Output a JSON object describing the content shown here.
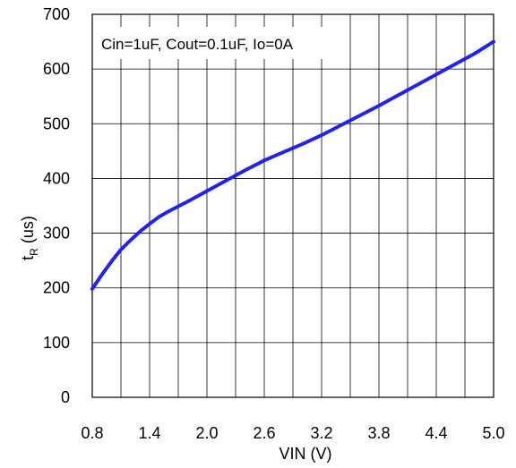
{
  "chart_data": {
    "type": "line",
    "annotation": "Cin=1uF, Cout=0.1uF, Io=0A",
    "xlabel": "VIN (V)",
    "ylabel_main": "t",
    "ylabel_sub": "R",
    "ylabel_unit": " (us)",
    "xlim": [
      0.8,
      5.0
    ],
    "ylim": [
      0,
      700
    ],
    "x_ticks": [
      0.8,
      1.4,
      2.0,
      2.6,
      3.2,
      3.8,
      4.4,
      5.0
    ],
    "x_tick_labels": [
      "0.8",
      "1.4",
      "2.0",
      "2.6",
      "3.2",
      "3.8",
      "4.4",
      "5.0"
    ],
    "y_ticks": [
      0,
      100,
      200,
      300,
      400,
      500,
      600,
      700
    ],
    "y_tick_labels": [
      "0",
      "100",
      "200",
      "300",
      "400",
      "500",
      "600",
      "700"
    ],
    "x_grid_step": 0.3,
    "y_grid_step": 100,
    "grid": true,
    "series": [
      {
        "color": "#2323e8",
        "x": [
          0.8,
          0.9,
          1.0,
          1.1,
          1.2,
          1.3,
          1.4,
          1.5,
          1.6,
          1.8,
          2.0,
          2.2,
          2.4,
          2.6,
          2.8,
          3.0,
          3.2,
          3.4,
          3.6,
          3.8,
          4.0,
          4.2,
          4.4,
          4.6,
          4.8,
          5.0
        ],
        "y": [
          198,
          224,
          248,
          270,
          287,
          303,
          317,
          330,
          340,
          358,
          377,
          396,
          415,
          433,
          448,
          463,
          479,
          497,
          515,
          533,
          552,
          571,
          590,
          609,
          628,
          650
        ]
      }
    ]
  }
}
